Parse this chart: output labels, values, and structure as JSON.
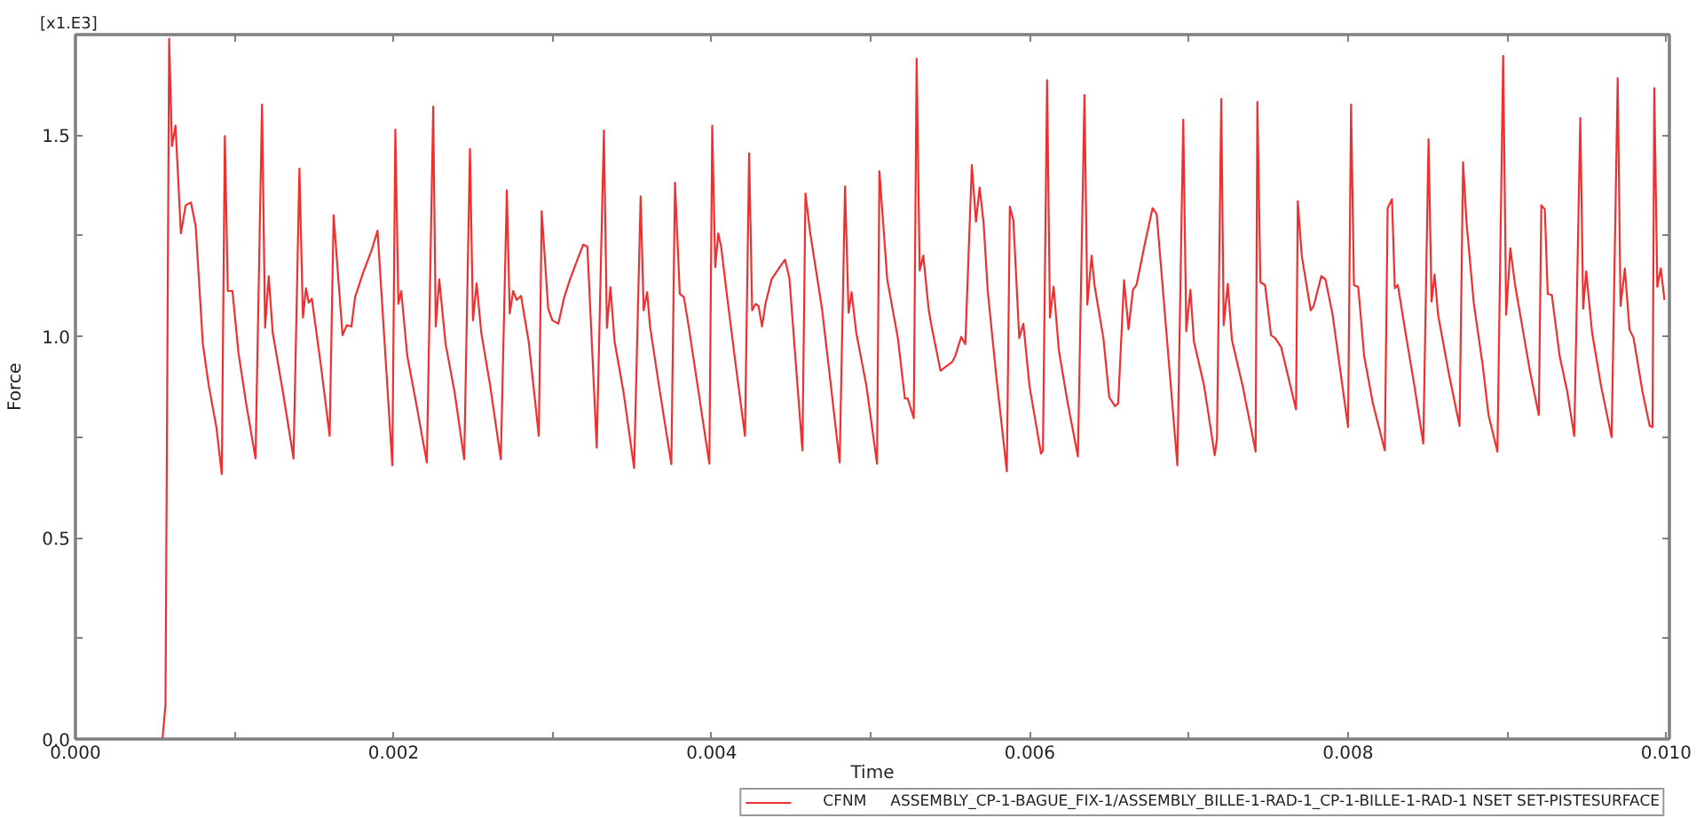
{
  "chart_data": {
    "type": "line",
    "xlabel": "Time",
    "ylabel": "Force",
    "annotations": [
      "[x1.E3]"
    ],
    "x": [
      0,
      0.000547,
      0.000566,
      0.000589,
      0.000607,
      0.000629,
      0.000663,
      0.000693,
      0.000726,
      0.000756,
      0.000801,
      0.000838,
      0.000886,
      0.00092,
      0.000939,
      0.000958,
      0.000987,
      0.001025,
      0.001073,
      0.001132,
      0.001173,
      0.001192,
      0.001215,
      0.00124,
      0.001304,
      0.001371,
      0.001408,
      0.00143,
      0.001449,
      0.001467,
      0.001486,
      0.001545,
      0.001598,
      0.001623,
      0.001679,
      0.001706,
      0.001735,
      0.001758,
      0.001807,
      0.001863,
      0.001899,
      0.001992,
      0.002011,
      0.00203,
      0.002048,
      0.002086,
      0.002142,
      0.002209,
      0.002249,
      0.002265,
      0.002287,
      0.002327,
      0.002383,
      0.002444,
      0.00248,
      0.002499,
      0.002522,
      0.002551,
      0.002607,
      0.002674,
      0.002712,
      0.00273,
      0.002752,
      0.002774,
      0.002801,
      0.002849,
      0.002913,
      0.002931,
      0.002972,
      0.002998,
      0.003036,
      0.003073,
      0.003109,
      0.003165,
      0.003192,
      0.003218,
      0.003277,
      0.003322,
      0.003341,
      0.003363,
      0.003389,
      0.003445,
      0.003512,
      0.003553,
      0.003572,
      0.003594,
      0.003612,
      0.003668,
      0.003746,
      0.003769,
      0.003799,
      0.003825,
      0.003855,
      0.003911,
      0.003985,
      0.004003,
      0.004022,
      0.004041,
      0.004059,
      0.004097,
      0.004153,
      0.004209,
      0.004235,
      0.004254,
      0.004276,
      0.004294,
      0.004316,
      0.004339,
      0.004376,
      0.004432,
      0.004461,
      0.004488,
      0.00457,
      0.004589,
      0.004618,
      0.004693,
      0.004749,
      0.004804,
      0.004838,
      0.00486,
      0.004879,
      0.004908,
      0.004972,
      0.005039,
      0.005054,
      0.005103,
      0.00517,
      0.005214,
      0.005232,
      0.00527,
      0.005288,
      0.005307,
      0.00533,
      0.005363,
      0.005382,
      0.005438,
      0.005512,
      0.005531,
      0.005568,
      0.005594,
      0.005635,
      0.005661,
      0.005684,
      0.005709,
      0.005735,
      0.005791,
      0.005855,
      0.005874,
      0.005896,
      0.005933,
      0.005959,
      0.005997,
      0.00607,
      0.006082,
      0.006108,
      0.006126,
      0.006149,
      0.006182,
      0.006238,
      0.006302,
      0.006343,
      0.006361,
      0.006388,
      0.006406,
      0.006462,
      0.006499,
      0.006536,
      0.006555,
      0.006592,
      0.00662,
      0.006648,
      0.00667,
      0.006723,
      0.006771,
      0.006797,
      0.006927,
      0.006964,
      0.006983,
      0.007009,
      0.007031,
      0.007095,
      0.007162,
      0.007176,
      0.007203,
      0.007218,
      0.007244,
      0.00727,
      0.007337,
      0.007419,
      0.00743,
      0.007449,
      0.007478,
      0.007516,
      0.007542,
      0.007579,
      0.007673,
      0.007684,
      0.007709,
      0.007765,
      0.007784,
      0.007832,
      0.007858,
      0.007903,
      0.008,
      0.008019,
      0.008037,
      0.008064,
      0.008101,
      0.008156,
      0.008231,
      0.008249,
      0.008276,
      0.008294,
      0.008313,
      0.008361,
      0.008417,
      0.008473,
      0.008506,
      0.008525,
      0.008544,
      0.008566,
      0.008634,
      0.008701,
      0.008723,
      0.008745,
      0.00879,
      0.008846,
      0.008883,
      0.008939,
      0.008975,
      0.008994,
      0.00902,
      0.00905,
      0.009098,
      0.009143,
      0.009199,
      0.009215,
      0.009237,
      0.009255,
      0.009281,
      0.00933,
      0.009378,
      0.009422,
      0.00946,
      0.009478,
      0.009497,
      0.009534,
      0.00959,
      0.009657,
      0.009695,
      0.009713,
      0.00974,
      0.009769,
      0.009795,
      0.009851,
      0.009896,
      0.009914,
      0.009925,
      0.009944,
      0.009966,
      0.009989
    ],
    "series": [
      {
        "name": "CFNM     ASSEMBLY_CP-1-BAGUE_FIX-1/ASSEMBLY_BILLE-1-RAD-1_CP-1-BILLE-1-RAD-1 NSET SET-PISTESURFACE",
        "color": "#f03030",
        "values": [
          0,
          0,
          0.084,
          1.74,
          1.473,
          1.524,
          1.256,
          1.326,
          1.333,
          1.274,
          0.981,
          0.878,
          0.775,
          0.658,
          1.498,
          1.113,
          1.113,
          0.959,
          0.834,
          0.697,
          1.576,
          1.022,
          1.15,
          1.01,
          0.863,
          0.697,
          1.417,
          1.047,
          1.12,
          1.084,
          1.094,
          0.922,
          0.753,
          1.301,
          1.003,
          1.028,
          1.025,
          1.098,
          1.157,
          1.216,
          1.263,
          0.68,
          1.514,
          1.081,
          1.113,
          0.952,
          0.834,
          0.687,
          1.571,
          1.025,
          1.142,
          0.981,
          0.863,
          0.695,
          1.466,
          1.04,
          1.132,
          1.01,
          0.878,
          0.695,
          1.363,
          1.057,
          1.113,
          1.091,
          1.101,
          0.988,
          0.753,
          1.311,
          1.069,
          1.04,
          1.032,
          1.098,
          1.142,
          1.201,
          1.228,
          1.223,
          0.724,
          1.512,
          1.021,
          1.123,
          0.988,
          0.863,
          0.673,
          1.348,
          1.065,
          1.11,
          1.025,
          0.878,
          0.683,
          1.382,
          1.106,
          1.098,
          1.025,
          0.878,
          0.684,
          1.524,
          1.172,
          1.256,
          1.223,
          1.098,
          0.922,
          0.753,
          1.455,
          1.065,
          1.081,
          1.076,
          1.025,
          1.084,
          1.142,
          1.175,
          1.191,
          1.145,
          0.717,
          1.355,
          1.26,
          1.069,
          0.878,
          0.687,
          1.373,
          1.059,
          1.11,
          1.01,
          0.878,
          0.684,
          1.411,
          1.142,
          0.996,
          0.846,
          0.846,
          0.797,
          1.69,
          1.164,
          1.201,
          1.069,
          1.025,
          0.915,
          0.937,
          0.952,
          0.999,
          0.981,
          1.426,
          1.285,
          1.37,
          1.282,
          1.113,
          0.893,
          0.665,
          1.323,
          1.289,
          0.996,
          1.032,
          0.878,
          0.709,
          0.717,
          1.637,
          1.047,
          1.124,
          0.966,
          0.834,
          0.702,
          1.6,
          1.079,
          1.201,
          1.128,
          0.996,
          0.849,
          0.827,
          0.834,
          1.14,
          1.018,
          1.116,
          1.128,
          1.231,
          1.319,
          1.304,
          0.68,
          1.539,
          1.013,
          1.116,
          0.988,
          0.878,
          0.705,
          0.746,
          1.59,
          1.028,
          1.131,
          0.991,
          0.878,
          0.714,
          1.583,
          1.135,
          1.128,
          1.003,
          0.996,
          0.974,
          0.819,
          1.336,
          1.201,
          1.065,
          1.076,
          1.15,
          1.142,
          1.054,
          0.775,
          1.576,
          1.128,
          1.123,
          0.952,
          0.834,
          0.717,
          1.319,
          1.341,
          1.12,
          1.128,
          1.01,
          0.878,
          0.734,
          1.49,
          1.087,
          1.154,
          1.054,
          0.907,
          0.778,
          1.433,
          1.282,
          1.084,
          0.93,
          0.805,
          0.714,
          1.697,
          1.054,
          1.219,
          1.128,
          1.018,
          0.915,
          0.805,
          1.326,
          1.316,
          1.106,
          1.103,
          0.952,
          0.863,
          0.753,
          1.543,
          1.069,
          1.162,
          1.01,
          0.878,
          0.75,
          1.642,
          1.076,
          1.169,
          1.018,
          0.996,
          0.863,
          0.778,
          0.775,
          1.617,
          1.123,
          1.169,
          1.091
        ]
      }
    ],
    "xlim": [
      0,
      0.01002
    ],
    "ylim": [
      0,
      1.75
    ],
    "xticks": [
      {
        "value": 0,
        "label": "0.000"
      },
      {
        "value": 0.001,
        "label": null
      },
      {
        "value": 0.002,
        "label": "0.002"
      },
      {
        "value": 0.003,
        "label": null
      },
      {
        "value": 0.004,
        "label": "0.004"
      },
      {
        "value": 0.005,
        "label": null
      },
      {
        "value": 0.006,
        "label": "0.006"
      },
      {
        "value": 0.007,
        "label": null
      },
      {
        "value": 0.008,
        "label": "0.008"
      },
      {
        "value": 0.009,
        "label": null
      },
      {
        "value": 0.01,
        "label": "0.010"
      }
    ],
    "yticks": [
      {
        "value": 0,
        "label": "0.0"
      },
      {
        "value": 0.25,
        "label": null
      },
      {
        "value": 0.5,
        "label": "0.5"
      },
      {
        "value": 0.75,
        "label": null
      },
      {
        "value": 1.0,
        "label": "1.0"
      },
      {
        "value": 1.25,
        "label": null
      },
      {
        "value": 1.5,
        "label": "1.5"
      }
    ],
    "grid": false,
    "legend": "bottom",
    "marker": "none",
    "line_style": "solid"
  }
}
